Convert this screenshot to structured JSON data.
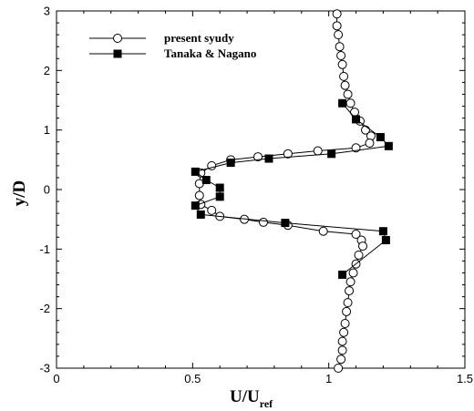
{
  "chart_data": {
    "type": "line",
    "xlabel_main": "U/U",
    "xlabel_sub": "ref",
    "ylabel": "y/D",
    "xlim": [
      0,
      1.5
    ],
    "ylim": [
      -3,
      3
    ],
    "x_ticks": [
      "0",
      "0.5",
      "1",
      "1.5"
    ],
    "y_ticks": [
      "-3",
      "-2",
      "-1",
      "0",
      "1",
      "2",
      "3"
    ],
    "grid": false,
    "legend_position": "top-left",
    "series": [
      {
        "name": "present syudy",
        "marker": "open-circle",
        "points": [
          [
            1.03,
            2.95
          ],
          [
            1.03,
            2.75
          ],
          [
            1.035,
            2.6
          ],
          [
            1.04,
            2.4
          ],
          [
            1.045,
            2.25
          ],
          [
            1.05,
            2.1
          ],
          [
            1.055,
            1.9
          ],
          [
            1.06,
            1.75
          ],
          [
            1.07,
            1.6
          ],
          [
            1.08,
            1.45
          ],
          [
            1.095,
            1.3
          ],
          [
            1.115,
            1.15
          ],
          [
            1.135,
            1.0
          ],
          [
            1.155,
            0.9
          ],
          [
            1.15,
            0.78
          ],
          [
            1.1,
            0.7
          ],
          [
            0.96,
            0.65
          ],
          [
            0.85,
            0.6
          ],
          [
            0.74,
            0.55
          ],
          [
            0.64,
            0.5
          ],
          [
            0.57,
            0.4
          ],
          [
            0.53,
            0.28
          ],
          [
            0.525,
            0.1
          ],
          [
            0.525,
            -0.1
          ],
          [
            0.53,
            -0.25
          ],
          [
            0.57,
            -0.35
          ],
          [
            0.6,
            -0.45
          ],
          [
            0.69,
            -0.5
          ],
          [
            0.76,
            -0.55
          ],
          [
            0.85,
            -0.6
          ],
          [
            0.98,
            -0.7
          ],
          [
            1.1,
            -0.75
          ],
          [
            1.12,
            -0.85
          ],
          [
            1.125,
            -0.95
          ],
          [
            1.11,
            -1.1
          ],
          [
            1.1,
            -1.25
          ],
          [
            1.09,
            -1.4
          ],
          [
            1.08,
            -1.55
          ],
          [
            1.075,
            -1.7
          ],
          [
            1.07,
            -1.9
          ],
          [
            1.065,
            -2.05
          ],
          [
            1.06,
            -2.25
          ],
          [
            1.055,
            -2.4
          ],
          [
            1.05,
            -2.55
          ],
          [
            1.05,
            -2.7
          ],
          [
            1.045,
            -2.85
          ],
          [
            1.035,
            -3.0
          ]
        ]
      },
      {
        "name": "Tanaka & Nagano",
        "marker": "filled-square",
        "points": [
          [
            1.05,
            1.45
          ],
          [
            1.1,
            1.18
          ],
          [
            1.19,
            0.88
          ],
          [
            1.22,
            0.73
          ],
          [
            1.01,
            0.6
          ],
          [
            0.78,
            0.52
          ],
          [
            0.64,
            0.45
          ],
          [
            0.51,
            0.3
          ],
          [
            0.55,
            0.16
          ],
          [
            0.6,
            0.03
          ],
          [
            0.6,
            -0.12
          ],
          [
            0.51,
            -0.27
          ],
          [
            0.53,
            -0.42
          ],
          [
            0.84,
            -0.56
          ],
          [
            1.2,
            -0.7
          ],
          [
            1.21,
            -0.85
          ],
          [
            1.05,
            -1.43
          ]
        ]
      }
    ]
  }
}
